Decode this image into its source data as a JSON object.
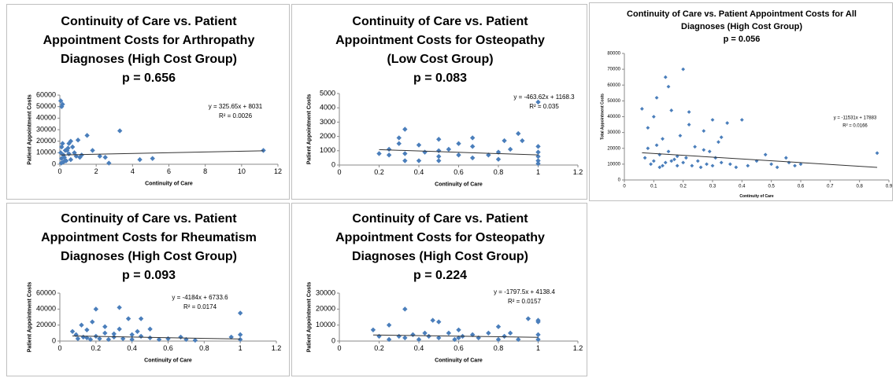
{
  "chart_data": [
    {
      "type": "scatter",
      "title": "Continuity of Care vs. Patient Appointment Costs for Arthropathy Diagnoses (High Cost Group)",
      "subtitle": "p = 0.656",
      "x_label": "Continuity of Care",
      "y_label": "Patient Appointment Costs",
      "xlim": [
        0,
        12
      ],
      "xticks": [
        0,
        2,
        4,
        6,
        8,
        10,
        12
      ],
      "ylim": [
        0,
        60000
      ],
      "yticks": [
        0,
        10000,
        20000,
        30000,
        40000,
        50000,
        60000
      ],
      "color": "#4a7ebb",
      "x": [
        0.05,
        0.1,
        0.15,
        0.05,
        0.1,
        0.2,
        0.3,
        0.4,
        0.5,
        0.6,
        0.7,
        0.8,
        0.9,
        1,
        1.2,
        1.5,
        1.8,
        2.5,
        2.7,
        3.3,
        4.4,
        5.1,
        11.2,
        0.1,
        0.2,
        0.3,
        0.5,
        0.6,
        0.15,
        0.25,
        0.35,
        0.45,
        1.1,
        0.08,
        2.2
      ],
      "values": [
        55000,
        50000,
        52000,
        10000,
        5000,
        8000,
        3000,
        12000,
        18000,
        20000,
        15000,
        10000,
        7000,
        21000,
        8000,
        25000,
        12000,
        6000,
        1000,
        29000,
        4000,
        5000,
        12000,
        15000,
        2000,
        12000,
        9000,
        4000,
        18000,
        6000,
        3000,
        14000,
        6000,
        1000,
        7000
      ],
      "trendline": {
        "slope": 325.65,
        "intercept": 8031
      },
      "annotations": [
        "y = 325.65x + 8031",
        "R² = 0.0026"
      ]
    },
    {
      "type": "scatter",
      "title": "Continuity of Care vs. Patient Appointment Costs for Osteopathy (Low Cost Group)",
      "subtitle": "p = 0.083",
      "x_label": "Continuity of Care",
      "y_label": "Patient Appointment Costs",
      "xlim": [
        0,
        1.2
      ],
      "xticks": [
        0,
        0.2,
        0.4,
        0.6,
        0.8,
        1,
        1.2
      ],
      "ylim": [
        0,
        5000
      ],
      "yticks": [
        0,
        1000,
        2000,
        3000,
        4000,
        5000
      ],
      "color": "#4a7ebb",
      "x": [
        0.2,
        0.25,
        0.3,
        0.3,
        0.33,
        0.33,
        0.33,
        0.4,
        0.43,
        0.5,
        0.5,
        0.5,
        0.5,
        0.55,
        0.6,
        0.6,
        0.67,
        0.67,
        0.67,
        0.75,
        0.8,
        0.8,
        0.83,
        0.86,
        0.9,
        0.92,
        1,
        1,
        1,
        1,
        1,
        1,
        0.4,
        0.25
      ],
      "values": [
        800,
        700,
        1900,
        1500,
        2500,
        800,
        300,
        1400,
        900,
        1800,
        1000,
        600,
        300,
        1100,
        700,
        1500,
        1900,
        500,
        1300,
        700,
        400,
        900,
        1700,
        1100,
        2200,
        1700,
        4400,
        1300,
        900,
        600,
        300,
        100,
        300,
        1100
      ],
      "trendline": {
        "slope": -463.62,
        "intercept": 1168.3
      },
      "annotations": [
        "y = -463.62x + 1168.3",
        "R² = 0.035"
      ]
    },
    {
      "type": "scatter",
      "title": "Continuity of Care vs. Patient Appointment Costs for All Diagnoses (High Cost Group)",
      "subtitle": "p = 0.056",
      "x_label": "Continuity of Care",
      "y_label": "Total Appointment Costs",
      "xlim": [
        0,
        0.9
      ],
      "xticks": [
        0,
        0.1,
        0.2,
        0.3,
        0.4,
        0.5,
        0.6,
        0.7,
        0.8,
        0.9
      ],
      "ylim": [
        0,
        80000
      ],
      "yticks": [
        0,
        10000,
        20000,
        30000,
        40000,
        50000,
        60000,
        70000,
        80000
      ],
      "color": "#4a7ebb",
      "x": [
        0.06,
        0.07,
        0.08,
        0.09,
        0.1,
        0.1,
        0.11,
        0.12,
        0.12,
        0.13,
        0.14,
        0.14,
        0.15,
        0.15,
        0.16,
        0.17,
        0.18,
        0.19,
        0.2,
        0.2,
        0.21,
        0.22,
        0.23,
        0.24,
        0.25,
        0.26,
        0.27,
        0.28,
        0.29,
        0.3,
        0.3,
        0.31,
        0.32,
        0.33,
        0.35,
        0.36,
        0.38,
        0.4,
        0.42,
        0.45,
        0.48,
        0.5,
        0.52,
        0.55,
        0.56,
        0.58,
        0.6,
        0.86,
        0.08,
        0.13,
        0.18,
        0.22,
        0.27,
        0.33,
        0.11,
        0.16
      ],
      "values": [
        45000,
        14000,
        33000,
        10000,
        40000,
        12000,
        22000,
        8000,
        16000,
        9000,
        65000,
        11000,
        59000,
        18000,
        44000,
        13000,
        9000,
        28000,
        70000,
        11000,
        14000,
        43000,
        9000,
        21000,
        12000,
        8000,
        31000,
        10000,
        18000,
        38000,
        9000,
        14000,
        24000,
        11000,
        36000,
        10000,
        8000,
        38000,
        9000,
        12000,
        16000,
        10000,
        8000,
        14000,
        11000,
        9000,
        10000,
        17000,
        20000,
        26000,
        15000,
        35000,
        19000,
        27000,
        52000,
        12000
      ],
      "trendline": {
        "slope": -11531,
        "intercept": 17883
      },
      "annotations": [
        "y = -11531x + 17883",
        "R² = 0.0166"
      ]
    },
    {
      "type": "scatter",
      "title": "Continuity of Care vs. Patient Appointment Costs for Rheumatism Diagnoses (High Cost Group)",
      "subtitle": "p = 0.093",
      "x_label": "Continuity of Care",
      "y_label": "Patient Appointment Costs",
      "xlim": [
        0,
        1.2
      ],
      "xticks": [
        0,
        0.2,
        0.4,
        0.6,
        0.8,
        1,
        1.2
      ],
      "ylim": [
        0,
        60000
      ],
      "yticks": [
        0,
        20000,
        40000,
        60000
      ],
      "color": "#4a7ebb",
      "x": [
        0.07,
        0.09,
        0.1,
        0.12,
        0.13,
        0.15,
        0.17,
        0.18,
        0.2,
        0.2,
        0.22,
        0.25,
        0.27,
        0.3,
        0.33,
        0.33,
        0.35,
        0.38,
        0.4,
        0.4,
        0.43,
        0.45,
        0.5,
        0.5,
        0.55,
        0.6,
        0.67,
        0.7,
        0.75,
        1,
        1,
        1,
        0.15,
        0.25,
        0.3,
        0.45,
        0.95
      ],
      "values": [
        12000,
        8000,
        3000,
        20000,
        5000,
        14000,
        2000,
        24000,
        40000,
        6000,
        3000,
        10000,
        2000,
        5000,
        42000,
        15000,
        3000,
        28000,
        8000,
        2000,
        12000,
        28000,
        4000,
        15000,
        2000,
        3000,
        5000,
        2000,
        1000,
        35000,
        8000,
        2000,
        4000,
        18000,
        9000,
        6000,
        5000
      ],
      "trendline": {
        "slope": -4184,
        "intercept": 6733.6
      },
      "annotations": [
        "y = -4184x + 6733.6",
        "R² = 0.0174"
      ]
    },
    {
      "type": "scatter",
      "title": "Continuity of Care vs. Patient Appointment Costs for Osteopathy Diagnoses (High Cost Group)",
      "subtitle": "p = 0.224",
      "x_label": "Continuity of Care",
      "y_label": "Patient Appointment Costs",
      "xlim": [
        0,
        1.2
      ],
      "xticks": [
        0,
        0.2,
        0.4,
        0.6,
        0.8,
        1,
        1.2
      ],
      "ylim": [
        0,
        30000
      ],
      "yticks": [
        0,
        10000,
        20000,
        30000
      ],
      "color": "#4a7ebb",
      "x": [
        0.17,
        0.2,
        0.25,
        0.25,
        0.3,
        0.33,
        0.33,
        0.37,
        0.4,
        0.43,
        0.47,
        0.5,
        0.5,
        0.55,
        0.58,
        0.6,
        0.62,
        0.67,
        0.7,
        0.75,
        0.8,
        0.8,
        0.83,
        0.86,
        0.9,
        1,
        1,
        1,
        1,
        0.45,
        0.6,
        0.95
      ],
      "values": [
        7000,
        3000,
        10000,
        1000,
        3000,
        20000,
        2000,
        4000,
        1000,
        5000,
        13000,
        12000,
        2000,
        5000,
        1000,
        7000,
        3000,
        4000,
        2000,
        5000,
        9000,
        1000,
        3000,
        5000,
        1000,
        13000,
        12000,
        4000,
        1000,
        3000,
        2000,
        14000
      ],
      "trendline": {
        "slope": -1797.5,
        "intercept": 4138.4
      },
      "annotations": [
        "y = -1797.5x + 4138.4",
        "R² = 0.0157"
      ]
    }
  ]
}
